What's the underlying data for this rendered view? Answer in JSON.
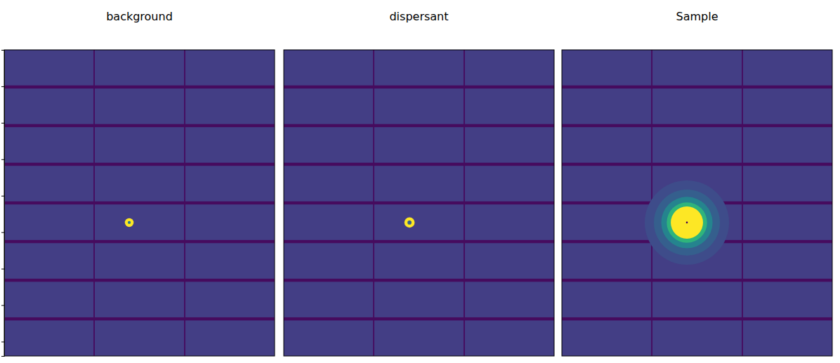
{
  "chart_data": [
    {
      "type": "heatmap",
      "title": "background",
      "xlim": [
        0,
        1475
      ],
      "ylim": [
        1679,
        0
      ],
      "yticks": [
        200,
        400,
        600,
        800,
        1000,
        1200,
        1400,
        1600
      ],
      "tick_labels": false,
      "clim": [
        0,
        10
      ],
      "module_grid": [
        3,
        8
      ],
      "module_size": [
        487,
        195
      ],
      "module_gap": [
        7,
        17
      ],
      "gap_value": 0.3,
      "background_value": 1.8,
      "spot": {
        "x": 682,
        "y": 947,
        "rings": [
          {
            "r": 24,
            "value": 10
          },
          {
            "r": 8,
            "value": 4
          }
        ]
      }
    },
    {
      "type": "heatmap",
      "title": "dispersant",
      "xlim": [
        0,
        1475
      ],
      "ylim": [
        1679,
        0
      ],
      "tick_labels": false,
      "clim": [
        0,
        10
      ],
      "module_grid": [
        3,
        8
      ],
      "module_size": [
        487,
        195
      ],
      "module_gap": [
        7,
        17
      ],
      "gap_value": 0.3,
      "background_value": 1.8,
      "spot": {
        "x": 686,
        "y": 947,
        "rings": [
          {
            "r": 28,
            "value": 10
          },
          {
            "r": 11,
            "value": 3
          }
        ]
      }
    },
    {
      "type": "heatmap",
      "title": "Sample",
      "xlim": [
        0,
        1475
      ],
      "ylim": [
        1679,
        0
      ],
      "tick_labels": false,
      "clim": [
        0,
        10
      ],
      "module_grid": [
        3,
        8
      ],
      "module_size": [
        487,
        195
      ],
      "module_gap": [
        7,
        17
      ],
      "gap_value": 0.3,
      "background_value": 1.8,
      "spot": {
        "x": 682,
        "y": 947,
        "rings": [
          {
            "r": 230,
            "value": 2.3
          },
          {
            "r": 180,
            "value": 3
          },
          {
            "r": 140,
            "value": 4.5
          },
          {
            "r": 110,
            "value": 6.5
          },
          {
            "r": 88,
            "value": 10
          },
          {
            "r": 5,
            "value": 0
          }
        ]
      }
    }
  ]
}
